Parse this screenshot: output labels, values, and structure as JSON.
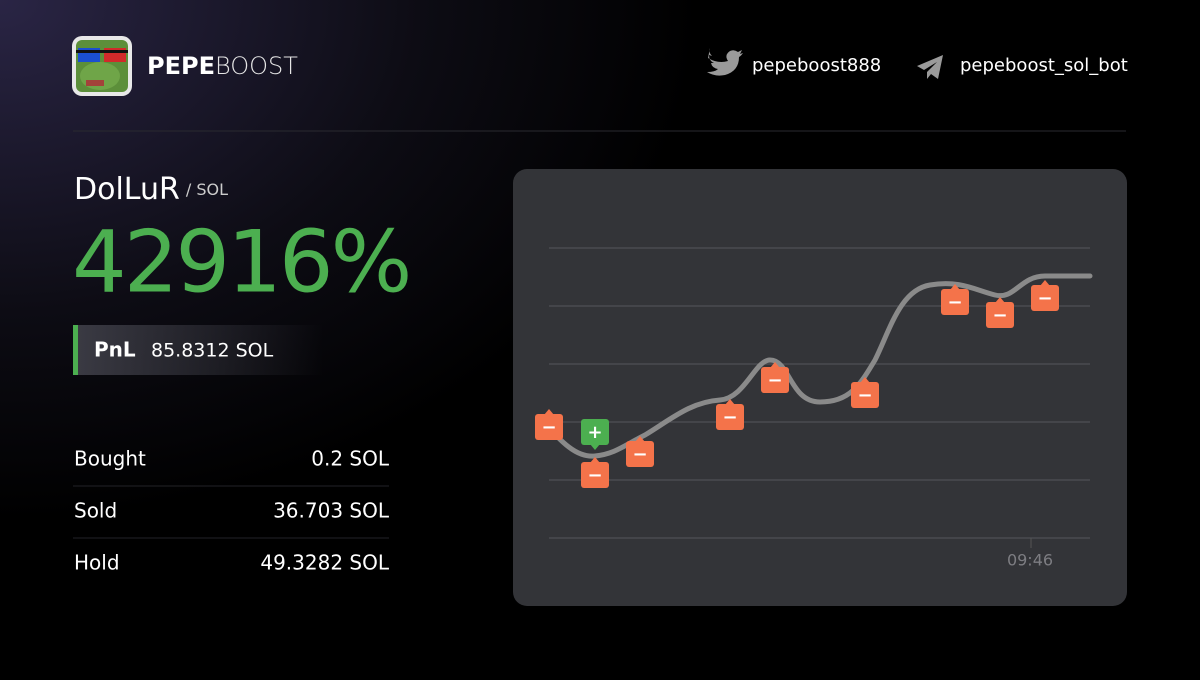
{
  "header": {
    "brand_bold": "PEPE",
    "brand_light": "BOOST",
    "twitter": "pepeboost888",
    "telegram": "pepeboost_sol_bot"
  },
  "token": {
    "name": "DolLuR",
    "pair": "/ SOL"
  },
  "pnl_percent": "42916%",
  "pnl": {
    "label": "PnL",
    "value": "85.8312 SOL"
  },
  "rows": [
    [
      "Bought",
      "0.2 SOL"
    ],
    [
      "Sold",
      "36.703 SOL"
    ],
    [
      "Hold",
      "49.3282 SOL"
    ]
  ],
  "chart": {
    "time_label": "09:46",
    "markers": [
      "−",
      "+",
      "−",
      "−",
      "−",
      "−",
      "−",
      "−",
      "−",
      "−"
    ]
  }
}
